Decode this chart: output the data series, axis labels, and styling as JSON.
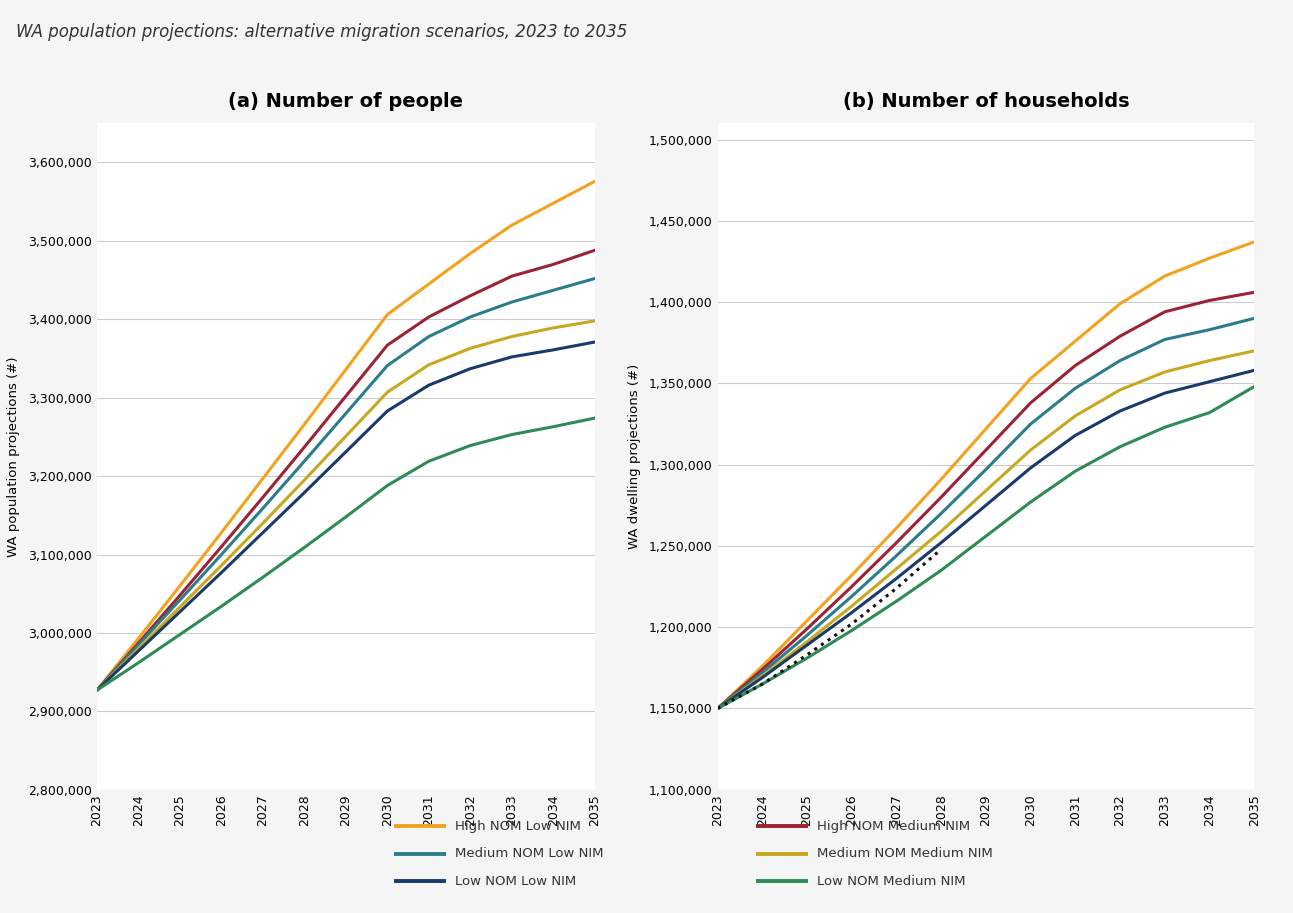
{
  "title": "WA population projections: alternative migration scenarios, 2023 to 2035",
  "title_fontsize": 12,
  "subplot_a_title": "(a) Number of people",
  "subplot_b_title": "(b) Number of households",
  "ylabel_a": "WA population projections (#)",
  "ylabel_b": "WA dwelling projections (#)",
  "years": [
    2023,
    2024,
    2025,
    2026,
    2027,
    2028,
    2029,
    2030,
    2031,
    2032,
    2033,
    2034,
    2035
  ],
  "ylim_a": [
    2800000,
    3650000
  ],
  "ylim_b": [
    1100000,
    1510000
  ],
  "yticks_a": [
    2800000,
    2900000,
    3000000,
    3100000,
    3200000,
    3300000,
    3400000,
    3500000,
    3600000
  ],
  "yticks_b": [
    1100000,
    1150000,
    1200000,
    1250000,
    1300000,
    1350000,
    1400000,
    1450000,
    1500000
  ],
  "series": {
    "high_nom_low_nim": {
      "label": "High NOM Low NIM",
      "color": "#F4A21E",
      "linewidth": 2.2,
      "linestyle": "-",
      "pop": [
        2927000,
        2993000,
        3060000,
        3128000,
        3197000,
        3266000,
        3336000,
        3406000,
        3445000,
        3484000,
        3520000,
        3548000,
        3576000
      ],
      "hh": [
        1150000,
        1176000,
        1204000,
        1232000,
        1261000,
        1291000,
        1322000,
        1353000,
        1376000,
        1399000,
        1416000,
        1427000,
        1437000
      ]
    },
    "high_nom_med_nim": {
      "label": "High NOM Medium NIM",
      "color": "#9B2335",
      "linewidth": 2.2,
      "linestyle": "-",
      "pop": [
        2927000,
        2987000,
        3048000,
        3110000,
        3173000,
        3237000,
        3302000,
        3367000,
        3403000,
        3430000,
        3455000,
        3470000,
        3488000
      ],
      "hh": [
        1150000,
        1174000,
        1199000,
        1225000,
        1252000,
        1280000,
        1309000,
        1338000,
        1361000,
        1379000,
        1394000,
        1401000,
        1406000
      ]
    },
    "med_nom_low_nim": {
      "label": "Medium NOM Low NIM",
      "color": "#2B7D8C",
      "linewidth": 2.2,
      "linestyle": "-",
      "pop": [
        2927000,
        2985000,
        3042000,
        3100000,
        3159000,
        3219000,
        3280000,
        3341000,
        3378000,
        3403000,
        3422000,
        3437000,
        3452000
      ],
      "hh": [
        1150000,
        1172000,
        1195000,
        1219000,
        1244000,
        1270000,
        1297000,
        1325000,
        1347000,
        1364000,
        1377000,
        1383000,
        1390000
      ]
    },
    "med_nom_med_nim": {
      "label": "Medium NOM Medium NIM",
      "color": "#C8A820",
      "linewidth": 2.2,
      "linestyle": "-",
      "pop": [
        2927000,
        2980000,
        3033000,
        3086000,
        3140000,
        3195000,
        3251000,
        3307000,
        3342000,
        3363000,
        3378000,
        3389000,
        3398000
      ],
      "hh": [
        1150000,
        1170000,
        1191000,
        1213000,
        1236000,
        1259000,
        1284000,
        1309000,
        1330000,
        1346000,
        1357000,
        1364000,
        1370000
      ]
    },
    "low_nom_low_nim": {
      "label": "Low NOM Low NIM",
      "color": "#1A3A6B",
      "linewidth": 2.2,
      "linestyle": "-",
      "pop": [
        2927000,
        2977000,
        3027000,
        3077000,
        3128000,
        3179000,
        3231000,
        3283000,
        3316000,
        3337000,
        3352000,
        3361000,
        3371000
      ],
      "hh": [
        1150000,
        1169000,
        1189000,
        1209000,
        1230000,
        1252000,
        1275000,
        1298000,
        1318000,
        1333000,
        1344000,
        1351000,
        1358000
      ]
    },
    "low_nom_med_nim": {
      "label": "Low NOM Medium NIM",
      "color": "#2E8B57",
      "linewidth": 2.2,
      "linestyle": "-",
      "pop": [
        2927000,
        2962000,
        2998000,
        3034000,
        3071000,
        3109000,
        3148000,
        3188000,
        3219000,
        3239000,
        3253000,
        3263000,
        3274000
      ],
      "hh": [
        1150000,
        1165000,
        1181000,
        1198000,
        1216000,
        1235000,
        1256000,
        1277000,
        1296000,
        1311000,
        1323000,
        1332000,
        1348000
      ]
    }
  },
  "dotted_series_hh": {
    "years": [
      2023,
      2024,
      2025,
      2026,
      2027,
      2028
    ],
    "values": [
      1150000,
      1165000,
      1183000,
      1202000,
      1224000,
      1248000
    ],
    "color": "#111111",
    "linewidth": 2.2,
    "linestyle": ":"
  },
  "background_color": "#f5f5f5",
  "plot_bg_color": "#ffffff",
  "grid_color": "#cccccc",
  "legend_items_left": [
    {
      "label": "High NOM Low NIM",
      "color": "#F4A21E"
    },
    {
      "label": "Medium NOM Low NIM",
      "color": "#2B7D8C"
    },
    {
      "label": "Low NOM Low NIM",
      "color": "#1A3A6B"
    }
  ],
  "legend_items_right": [
    {
      "label": "High NOM Medium NIM",
      "color": "#9B2335"
    },
    {
      "label": "Medium NOM Medium NIM",
      "color": "#C8A820"
    },
    {
      "label": "Low NOM Medium NIM",
      "color": "#2E8B57"
    }
  ]
}
